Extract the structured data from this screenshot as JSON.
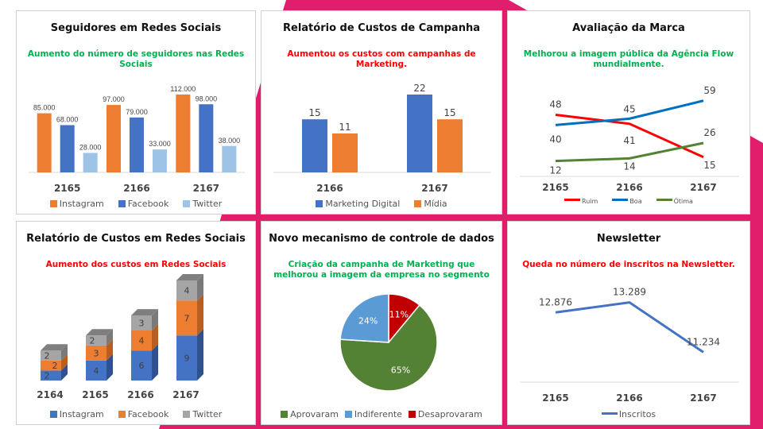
{
  "colors": {
    "accent": "#e01e6c",
    "green_text": "#00b050",
    "red_text": "#ff0000"
  },
  "chart_data": [
    {
      "type": "bar",
      "title": "Seguidores em Redes Sociais",
      "subtitle": "Aumento do número de seguidores  nas Redes Sociais",
      "subtitle_color": "#00b050",
      "categories": [
        "2165",
        "2166",
        "2167"
      ],
      "series": [
        {
          "name": "Instagram",
          "color": "#ed7d31",
          "values": [
            85000,
            97000,
            112000
          ],
          "labels": [
            "85.000",
            "97.000",
            "112.000"
          ]
        },
        {
          "name": "Facebook",
          "color": "#4472c4",
          "values": [
            68000,
            79000,
            98000
          ],
          "labels": [
            "68.000",
            "79.000",
            "98.000"
          ]
        },
        {
          "name": "Twitter",
          "color": "#9dc3e6",
          "values": [
            28000,
            33000,
            38000
          ],
          "labels": [
            "28.000",
            "33.000",
            "38.000"
          ]
        }
      ],
      "legend": "bottom",
      "grid": false
    },
    {
      "type": "bar",
      "title": "Relatório de Custos  de Campanha",
      "subtitle": "Aumentou  os custos com campanhas de Marketing.",
      "subtitle_color": "#ff0000",
      "categories": [
        "2166",
        "2167"
      ],
      "series": [
        {
          "name": "Marketing Digital",
          "color": "#4472c4",
          "values": [
            15,
            22
          ],
          "labels": [
            "15",
            "22"
          ]
        },
        {
          "name": "Mídia",
          "color": "#ed7d31",
          "values": [
            11,
            15
          ],
          "labels": [
            "11",
            "15"
          ]
        }
      ],
      "legend": "bottom",
      "grid": false
    },
    {
      "type": "line",
      "title": "Avaliação da Marca",
      "subtitle": "Melhorou  a imagem pública da Agência Flow mundialmente.",
      "subtitle_color": "#00b050",
      "categories": [
        "2165",
        "2166",
        "2167"
      ],
      "series": [
        {
          "name": "Ruim",
          "color": "#ff0000",
          "values": [
            48,
            41,
            15
          ]
        },
        {
          "name": "Boa",
          "color": "#0070c0",
          "values": [
            40,
            45,
            59
          ]
        },
        {
          "name": "Ótima",
          "color": "#548235",
          "values": [
            12,
            14,
            26
          ]
        }
      ],
      "legend": "bottom",
      "grid": false
    },
    {
      "type": "bar",
      "stacked": true,
      "style": "3d",
      "title": "Relatório de Custos  em Redes Sociais",
      "subtitle": "Aumento  dos custos  em Redes  Sociais",
      "subtitle_color": "#ff0000",
      "categories": [
        "2164",
        "2165",
        "2166",
        "2167"
      ],
      "series": [
        {
          "name": "Instagram",
          "color": "#4472c4",
          "values": [
            2,
            4,
            6,
            9
          ]
        },
        {
          "name": "Facebook",
          "color": "#ed7d31",
          "values": [
            2,
            3,
            4,
            7
          ]
        },
        {
          "name": "Twitter",
          "color": "#a5a5a5",
          "values": [
            2,
            2,
            3,
            4
          ]
        }
      ],
      "legend": "bottom",
      "grid": false
    },
    {
      "type": "pie",
      "title": "Novo mecanismo de controle de dados",
      "subtitle": "Criação da campanha de Marketing que melhorou a imagem da empresa  no segmento",
      "subtitle_color": "#00b050",
      "slices": [
        {
          "name": "Desaprovaram",
          "value": 11,
          "label": "11%",
          "color": "#c00000"
        },
        {
          "name": "Aprovaram",
          "value": 65,
          "label": "65%",
          "color": "#548235"
        },
        {
          "name": "Indiferente",
          "value": 24,
          "label": "24%",
          "color": "#5b9bd5"
        }
      ],
      "legend_order": [
        "Aprovaram",
        "Indiferente",
        "Desaprovaram"
      ],
      "legend": "bottom"
    },
    {
      "type": "line",
      "title": "Newsletter",
      "subtitle": "Queda no número de inscritos  na Newsletter.",
      "subtitle_color": "#ff0000",
      "categories": [
        "2165",
        "2166",
        "2167"
      ],
      "series": [
        {
          "name": "Inscritos",
          "color": "#4472c4",
          "values": [
            12876,
            13289,
            11234
          ],
          "labels": [
            "12.876",
            "13.289",
            "11.234"
          ]
        }
      ],
      "legend": "bottom",
      "grid": false
    }
  ]
}
